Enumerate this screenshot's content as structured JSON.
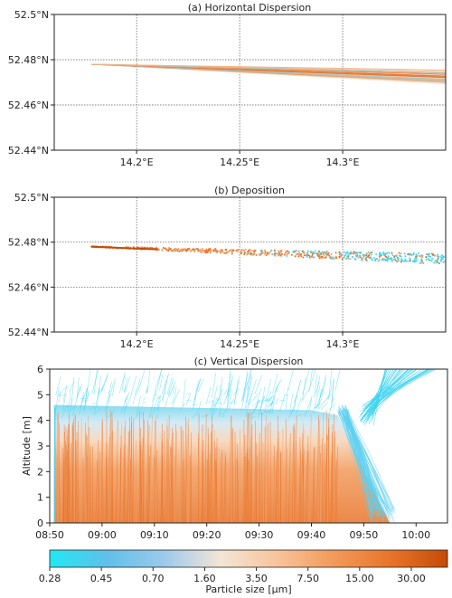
{
  "chart_data": [
    {
      "type": "line",
      "title": "(a) Horizontal Dispersion",
      "x_ticks": [
        "14.2°E",
        "14.25°E",
        "14.3°E"
      ],
      "x_tick_values": [
        14.2,
        14.25,
        14.3
      ],
      "y_ticks": [
        "52.44°N",
        "52.46°N",
        "52.48°N",
        "52.5°N"
      ],
      "y_tick_values": [
        52.44,
        52.46,
        52.48,
        52.5
      ],
      "xlim": [
        14.16,
        14.35
      ],
      "ylim": [
        52.44,
        52.5
      ],
      "grid": true,
      "source_point": [
        14.178,
        52.478
      ],
      "plume_edges_at_right": {
        "upper": 52.475,
        "lower": 52.47
      },
      "colors": {
        "small_particles": "#3fd5f0",
        "large_particles": "#e8742a"
      }
    },
    {
      "type": "scatter",
      "title": "(b) Deposition",
      "x_ticks": [
        "14.2°E",
        "14.25°E",
        "14.3°E"
      ],
      "x_tick_values": [
        14.2,
        14.25,
        14.3
      ],
      "y_ticks": [
        "52.44°N",
        "52.46°N",
        "52.48°N",
        "52.5°N"
      ],
      "y_tick_values": [
        52.44,
        52.46,
        52.48,
        52.5
      ],
      "xlim": [
        14.16,
        14.35
      ],
      "ylim": [
        52.44,
        52.5
      ],
      "grid": true,
      "source_point": [
        14.178,
        52.478
      ],
      "colors": {
        "small_particles": "#3fd5f0",
        "large_particles": "#e8742a"
      }
    },
    {
      "type": "line",
      "title": "(c) Vertical Dispersion",
      "ylabel": "Altitude [m]",
      "x_ticks": [
        "08:50",
        "09:00",
        "09:10",
        "09:20",
        "09:30",
        "09:40",
        "09:50",
        "10:00"
      ],
      "x_tick_minutes": [
        530,
        540,
        550,
        560,
        570,
        580,
        590,
        600
      ],
      "y_ticks": [
        "0",
        "1",
        "2",
        "3",
        "4",
        "5",
        "6"
      ],
      "xlim_minutes": [
        530,
        606
      ],
      "ylim": [
        0,
        6
      ],
      "plume_top": 4.4,
      "release_end": "09:45",
      "grid": false
    }
  ],
  "colorbar": {
    "label": "Particle size [μm]",
    "tick_labels": [
      "0.28",
      "0.45",
      "0.70",
      "1.60",
      "3.50",
      "7.50",
      "15.00",
      "30.00"
    ],
    "stops": [
      "#22e8f2",
      "#5fc0ea",
      "#9cc9ec",
      "#f3e5d6",
      "#f8c49c",
      "#f29a5a",
      "#e8742a",
      "#c44b06"
    ]
  }
}
